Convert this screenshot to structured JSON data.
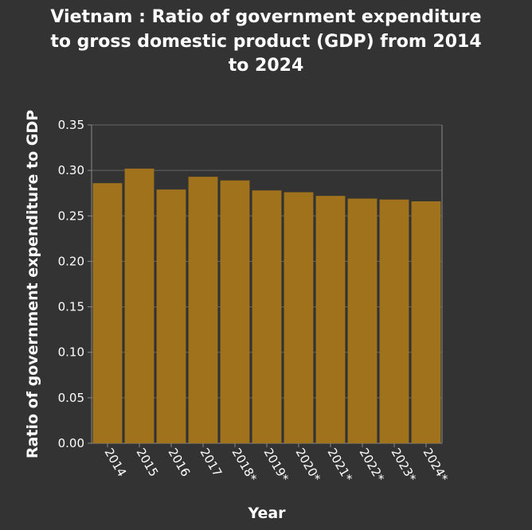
{
  "chart_data": {
    "type": "bar",
    "title_lines": [
      "Vietnam : Ratio of government expenditure",
      "to gross domestic product (GDP) from 2014",
      "to 2024"
    ],
    "xlabel": "Year",
    "ylabel": "Ratio of government expenditure to GDP",
    "categories": [
      "2014",
      "2015",
      "2016",
      "2017",
      "2018*",
      "2019*",
      "2020*",
      "2021*",
      "2022*",
      "2023*",
      "2024*"
    ],
    "values": [
      0.286,
      0.302,
      0.279,
      0.293,
      0.289,
      0.278,
      0.276,
      0.272,
      0.269,
      0.268,
      0.266
    ],
    "ylim": [
      0,
      0.35
    ],
    "yticks": [
      "0.00",
      "0.05",
      "0.10",
      "0.15",
      "0.20",
      "0.25",
      "0.30",
      "0.35"
    ],
    "grid": true,
    "bar_color": "#a0721c",
    "background_color": "#333333"
  }
}
